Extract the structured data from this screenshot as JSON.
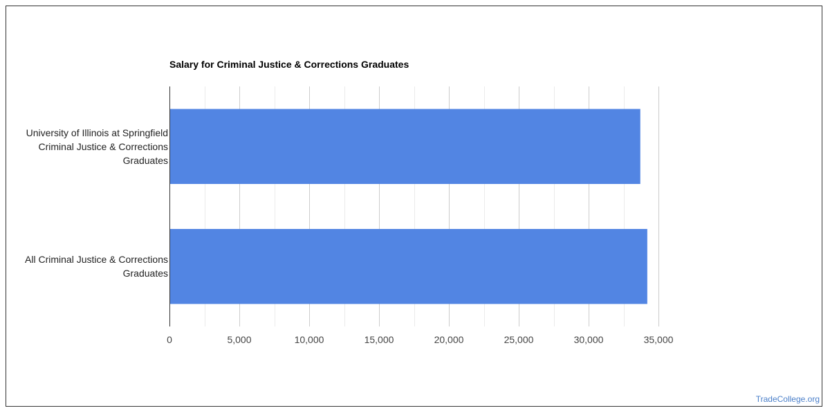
{
  "chart_data": {
    "type": "bar",
    "orientation": "horizontal",
    "title": "Salary for Criminal Justice & Corrections Graduates",
    "categories": [
      [
        "University of Illinois at Springfield",
        "Criminal Justice & Corrections",
        "Graduates"
      ],
      [
        "All Criminal Justice & Corrections",
        "Graduates"
      ]
    ],
    "values": [
      33700,
      34200
    ],
    "xlim": [
      0,
      35000
    ],
    "x_ticks": [
      0,
      5000,
      10000,
      15000,
      20000,
      25000,
      30000,
      35000
    ],
    "x_tick_labels": [
      "0",
      "5,000",
      "10,000",
      "15,000",
      "20,000",
      "25,000",
      "30,000",
      "35,000"
    ],
    "grid": true,
    "bar_color": "#5285e3",
    "legend": "none"
  },
  "watermark": {
    "text": "TradeCollege.org",
    "color": "#4a7fc9"
  }
}
